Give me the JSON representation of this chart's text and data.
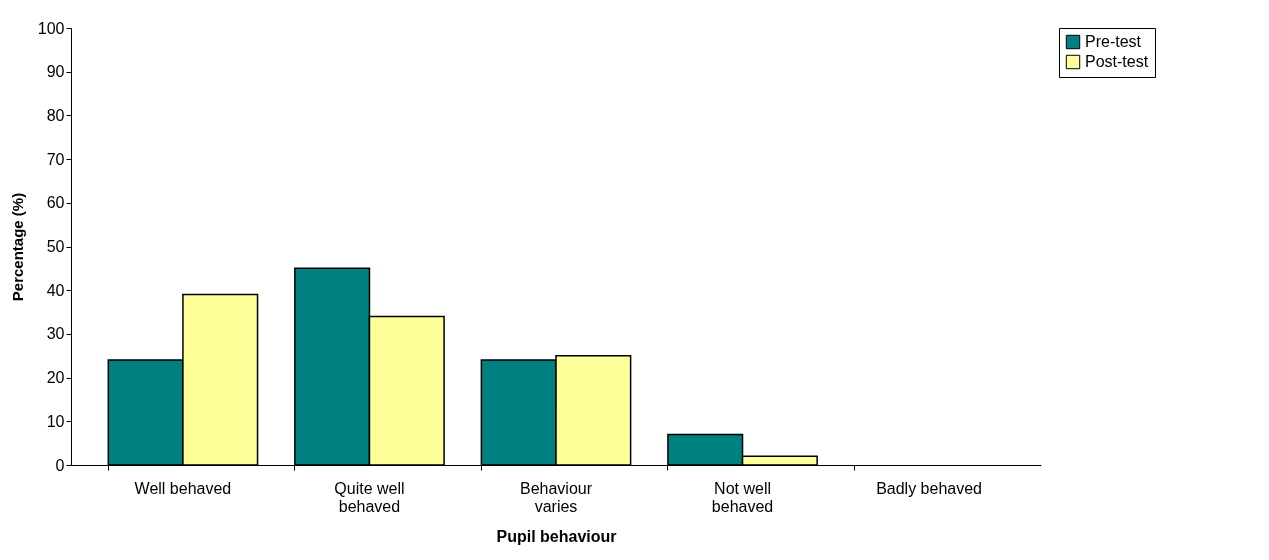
{
  "chart_data": {
    "type": "bar",
    "xlabel": "Pupil behaviour",
    "ylabel": "Percentage (%)",
    "categories": [
      "Well behaved",
      "Quite well behaved",
      "Behaviour varies",
      "Not well behaved",
      "Badly behaved"
    ],
    "series": [
      {
        "name": "Pre-test",
        "color": "#008080",
        "values": [
          24,
          45,
          24,
          7,
          0
        ]
      },
      {
        "name": "Post-test",
        "color": "#ffff99",
        "values": [
          39,
          34,
          25,
          2,
          0
        ]
      }
    ],
    "ylim": [
      0,
      100
    ],
    "yticks": [
      0,
      10,
      20,
      30,
      40,
      50,
      60,
      70,
      80,
      90,
      100
    ],
    "grid": false,
    "legend": "right"
  }
}
